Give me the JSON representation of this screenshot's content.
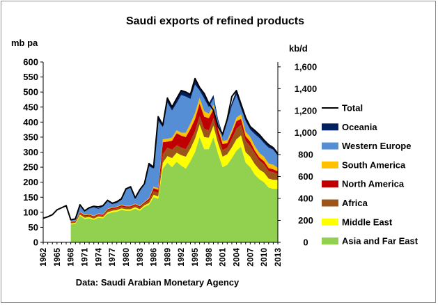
{
  "chart_data": {
    "type": "area",
    "stacked": true,
    "title": "Saudi exports of refined products",
    "ylabel_left": "mb pa",
    "ylabel_right": "kb/d",
    "source": "Data: Saudi Arabian Monetary Agency",
    "ylim_left": [
      0,
      600
    ],
    "yticks_left": [
      0,
      50,
      100,
      150,
      200,
      250,
      300,
      350,
      400,
      450,
      500,
      550,
      600
    ],
    "ylim_right": [
      0,
      1644
    ],
    "yticks_right": [
      "0",
      "200",
      "400",
      "600",
      "800",
      "1,000",
      "1,200",
      "1,400",
      "1,600"
    ],
    "yticks_right_values": [
      0,
      200,
      400,
      600,
      800,
      1000,
      1200,
      1400,
      1600
    ],
    "xlim": [
      1962,
      2013
    ],
    "xticks": [
      1962,
      1965,
      1968,
      1971,
      1974,
      1977,
      1980,
      1983,
      1986,
      1989,
      1992,
      1995,
      1998,
      2001,
      2004,
      2007,
      2010,
      2013
    ],
    "grid": false,
    "legend_position": "right",
    "total_series": {
      "name": "Total",
      "color": "#000000",
      "years": [
        1962,
        1963,
        1964,
        1965,
        1966,
        1967,
        1968,
        1969,
        1970,
        1971,
        1972,
        1973,
        1974,
        1975,
        1976,
        1977,
        1978,
        1979,
        1980,
        1981,
        1982,
        1983,
        1984,
        1985,
        1986,
        1987,
        1988,
        1989,
        1990,
        1991,
        1992,
        1993,
        1994,
        1995,
        1996,
        1997,
        1998,
        1999,
        2000,
        2001,
        2002,
        2003,
        2004,
        2005,
        2006,
        2007,
        2008,
        2009,
        2010,
        2011,
        2012,
        2013
      ],
      "values": [
        80,
        85,
        92,
        108,
        115,
        122,
        75,
        78,
        125,
        105,
        115,
        120,
        118,
        122,
        140,
        130,
        135,
        145,
        178,
        185,
        148,
        175,
        195,
        262,
        250,
        418,
        390,
        480,
        450,
        478,
        505,
        500,
        492,
        545,
        515,
        495,
        462,
        440,
        385,
        360,
        410,
        485,
        505,
        460,
        415,
        385,
        372,
        358,
        340,
        325,
        315,
        295
      ]
    },
    "series": [
      {
        "name": "Asia and Far East",
        "color": "#92d050",
        "years": [
          1968,
          1969,
          1970,
          1971,
          1972,
          1973,
          1974,
          1975,
          1976,
          1977,
          1978,
          1979,
          1980,
          1981,
          1982,
          1983,
          1984,
          1985,
          1986,
          1987,
          1988,
          1989,
          1990,
          1991,
          1992,
          1993,
          1994,
          1995,
          1996,
          1997,
          1998,
          1999,
          2000,
          2001,
          2002,
          2003,
          2004,
          2005,
          2006,
          2007,
          2008,
          2009,
          2010,
          2011,
          2012,
          2013
        ],
        "values": [
          60,
          62,
          88,
          78,
          80,
          75,
          82,
          80,
          95,
          100,
          102,
          108,
          105,
          105,
          112,
          105,
          118,
          125,
          150,
          145,
          245,
          265,
          250,
          268,
          255,
          245,
          270,
          300,
          350,
          310,
          310,
          350,
          295,
          250,
          258,
          280,
          305,
          318,
          265,
          250,
          225,
          210,
          200,
          182,
          178,
          178
        ]
      },
      {
        "name": "Middle East",
        "color": "#ffff00",
        "years": [
          1968,
          1969,
          1970,
          1971,
          1972,
          1973,
          1974,
          1975,
          1976,
          1977,
          1978,
          1979,
          1980,
          1981,
          1982,
          1983,
          1984,
          1985,
          1986,
          1987,
          1988,
          1989,
          1990,
          1991,
          1992,
          1993,
          1994,
          1995,
          1996,
          1997,
          1998,
          1999,
          2000,
          2001,
          2002,
          2003,
          2004,
          2005,
          2006,
          2007,
          2008,
          2009,
          2010,
          2011,
          2012,
          2013
        ],
        "values": [
          3,
          3,
          4,
          4,
          4,
          4,
          4,
          4,
          5,
          5,
          5,
          5,
          5,
          5,
          5,
          5,
          5,
          6,
          8,
          8,
          20,
          22,
          30,
          30,
          35,
          40,
          42,
          45,
          42,
          40,
          38,
          38,
          35,
          35,
          35,
          36,
          38,
          38,
          35,
          35,
          35,
          32,
          32,
          30,
          30,
          30
        ]
      },
      {
        "name": "Africa",
        "color": "#9c5418",
        "years": [
          1968,
          1969,
          1970,
          1971,
          1972,
          1973,
          1974,
          1975,
          1976,
          1977,
          1978,
          1979,
          1980,
          1981,
          1982,
          1983,
          1984,
          1985,
          1986,
          1987,
          1988,
          1989,
          1990,
          1991,
          1992,
          1993,
          1994,
          1995,
          1996,
          1997,
          1998,
          1999,
          2000,
          2001,
          2002,
          2003,
          2004,
          2005,
          2006,
          2007,
          2008,
          2009,
          2010,
          2011,
          2012,
          2013
        ],
        "values": [
          3,
          3,
          5,
          5,
          5,
          5,
          5,
          5,
          6,
          6,
          6,
          6,
          6,
          6,
          6,
          6,
          6,
          8,
          12,
          12,
          28,
          28,
          28,
          25,
          25,
          25,
          25,
          25,
          28,
          28,
          25,
          25,
          22,
          22,
          22,
          28,
          35,
          35,
          38,
          35,
          35,
          30,
          28,
          25,
          25,
          20
        ]
      },
      {
        "name": "North America",
        "color": "#c00000",
        "years": [
          1968,
          1969,
          1970,
          1971,
          1972,
          1973,
          1974,
          1975,
          1976,
          1977,
          1978,
          1979,
          1980,
          1981,
          1982,
          1983,
          1984,
          1985,
          1986,
          1987,
          1988,
          1989,
          1990,
          1991,
          1992,
          1993,
          1994,
          1995,
          1996,
          1997,
          1998,
          1999,
          2000,
          2001,
          2002,
          2003,
          2004,
          2005,
          2006,
          2007,
          2008,
          2009,
          2010,
          2011,
          2012,
          2013
        ],
        "values": [
          2,
          2,
          3,
          3,
          3,
          3,
          3,
          3,
          4,
          4,
          4,
          4,
          4,
          4,
          4,
          4,
          4,
          6,
          10,
          10,
          40,
          20,
          30,
          40,
          40,
          40,
          40,
          40,
          42,
          40,
          40,
          30,
          25,
          20,
          15,
          20,
          25,
          20,
          15,
          15,
          10,
          10,
          10,
          10,
          10,
          8
        ]
      },
      {
        "name": "South America",
        "color": "#ffc000",
        "years": [
          1968,
          1969,
          1970,
          1971,
          1972,
          1973,
          1974,
          1975,
          1976,
          1977,
          1978,
          1979,
          1980,
          1981,
          1982,
          1983,
          1984,
          1985,
          1986,
          1987,
          1988,
          1989,
          1990,
          1991,
          1992,
          1993,
          1994,
          1995,
          1996,
          1997,
          1998,
          1999,
          2000,
          2001,
          2002,
          2003,
          2004,
          2005,
          2006,
          2007,
          2008,
          2009,
          2010,
          2011,
          2012,
          2013
        ],
        "values": [
          1,
          1,
          2,
          2,
          2,
          2,
          2,
          2,
          2,
          2,
          2,
          2,
          2,
          2,
          2,
          2,
          2,
          3,
          5,
          5,
          10,
          10,
          10,
          10,
          10,
          15,
          18,
          20,
          18,
          18,
          15,
          15,
          10,
          10,
          10,
          10,
          12,
          15,
          15,
          15,
          15,
          15,
          15,
          15,
          15,
          12
        ]
      },
      {
        "name": "Western Europe",
        "color": "#558ed5",
        "years": [
          1968,
          1969,
          1970,
          1971,
          1972,
          1973,
          1974,
          1975,
          1976,
          1977,
          1978,
          1979,
          1980,
          1981,
          1982,
          1983,
          1984,
          1985,
          1986,
          1987,
          1988,
          1989,
          1990,
          1991,
          1992,
          1993,
          1994,
          1995,
          1996,
          1997,
          1998,
          1999,
          2000,
          2001,
          2002,
          2003,
          2004,
          2005,
          2006,
          2007,
          2008,
          2009,
          2010,
          2011,
          2012,
          2013
        ],
        "values": [
          4,
          5,
          20,
          10,
          18,
          28,
          15,
          25,
          25,
          10,
          12,
          16,
          53,
          60,
          16,
          50,
          57,
          105,
          60,
          225,
          40,
          120,
          90,
          90,
          125,
          120,
          82,
          95,
          25,
          42,
          22,
          20,
          15,
          13,
          60,
          80,
          75,
          20,
          35,
          25,
          40,
          50,
          45,
          53,
          50,
          40
        ]
      },
      {
        "name": "Oceania",
        "color": "#002060",
        "years": [
          1968,
          1969,
          1970,
          1971,
          1972,
          1973,
          1974,
          1975,
          1976,
          1977,
          1978,
          1979,
          1980,
          1981,
          1982,
          1983,
          1984,
          1985,
          1986,
          1987,
          1988,
          1989,
          1990,
          1991,
          1992,
          1993,
          1994,
          1995,
          1996,
          1997,
          1998,
          1999,
          2000,
          2001,
          2002,
          2003,
          2004,
          2005,
          2006,
          2007,
          2008,
          2009,
          2010,
          2011,
          2012,
          2013
        ],
        "values": [
          2,
          2,
          3,
          3,
          3,
          3,
          3,
          3,
          3,
          3,
          4,
          4,
          3,
          3,
          3,
          3,
          3,
          9,
          5,
          13,
          7,
          15,
          12,
          15,
          15,
          15,
          15,
          20,
          10,
          17,
          12,
          12,
          8,
          10,
          10,
          11,
          15,
          14,
          12,
          10,
          12,
          11,
          10,
          10,
          7,
          7
        ]
      }
    ],
    "legend": [
      "Total",
      "Oceania",
      "Western Europe",
      "South America",
      "North America",
      "Africa",
      "Middle East",
      "Asia and Far East"
    ]
  }
}
